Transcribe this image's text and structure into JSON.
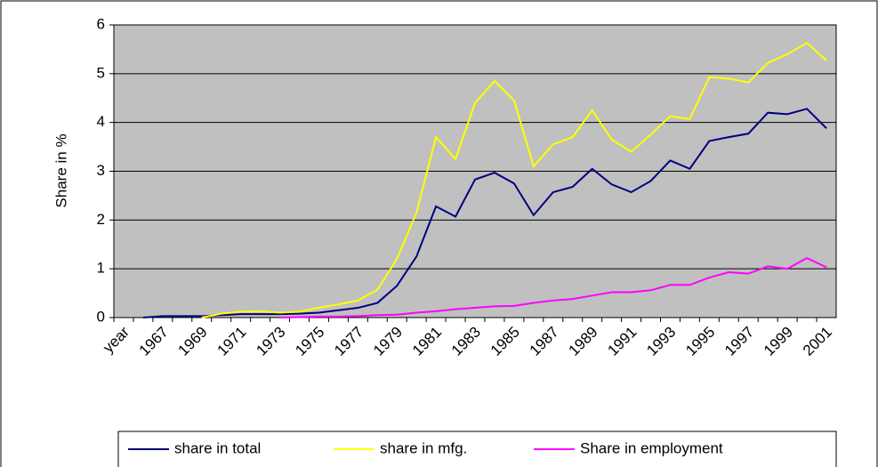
{
  "chart_data": {
    "type": "line",
    "ylabel": "Share in %",
    "categories": [
      "year",
      null,
      "1967",
      null,
      "1969",
      null,
      "1971",
      null,
      "1973",
      null,
      "1975",
      null,
      "1977",
      null,
      "1979",
      null,
      "1981",
      null,
      "1983",
      null,
      "1985",
      null,
      "1987",
      null,
      "1989",
      null,
      "1991",
      null,
      "1993",
      null,
      "1995",
      null,
      "1997",
      null,
      "1999",
      null,
      "2001"
    ],
    "series": [
      {
        "name": "share in total",
        "color": "#000080",
        "values": [
          null,
          0,
          0.03,
          0.03,
          0.03,
          0.05,
          0.07,
          0.07,
          0.07,
          0.08,
          0.1,
          0.15,
          0.2,
          0.3,
          0.65,
          1.25,
          2.28,
          2.07,
          2.83,
          2.97,
          2.75,
          2.1,
          2.57,
          2.68,
          3.05,
          2.73,
          2.57,
          2.8,
          3.22,
          3.05,
          3.62,
          3.7,
          3.77,
          4.2,
          4.17,
          4.28,
          3.88
        ]
      },
      {
        "name": "share in mfg.",
        "color": "#ffff00",
        "values": [
          null,
          null,
          null,
          null,
          0,
          0.08,
          0.12,
          0.13,
          0.1,
          0.12,
          0.2,
          0.27,
          0.35,
          0.57,
          1.2,
          2.15,
          3.7,
          3.25,
          4.4,
          4.85,
          4.45,
          3.1,
          3.55,
          3.7,
          4.25,
          3.65,
          3.4,
          3.75,
          4.13,
          4.07,
          4.93,
          4.9,
          4.82,
          5.22,
          5.4,
          5.63,
          5.27
        ]
      },
      {
        "name": "Share in employment",
        "color": "#ff00ff",
        "values": [
          null,
          null,
          null,
          null,
          null,
          null,
          null,
          null,
          0,
          0.01,
          0.02,
          0.02,
          0.03,
          0.05,
          0.06,
          0.1,
          0.13,
          0.17,
          0.2,
          0.23,
          0.24,
          0.3,
          0.35,
          0.38,
          0.45,
          0.52,
          0.52,
          0.56,
          0.67,
          0.67,
          0.82,
          0.93,
          0.9,
          1.05,
          1.0,
          1.22,
          1.03
        ]
      }
    ],
    "ylim": [
      0,
      6
    ],
    "yticks": [
      0,
      1,
      2,
      3,
      4,
      5,
      6
    ],
    "grid": true,
    "legend": "bottom"
  }
}
